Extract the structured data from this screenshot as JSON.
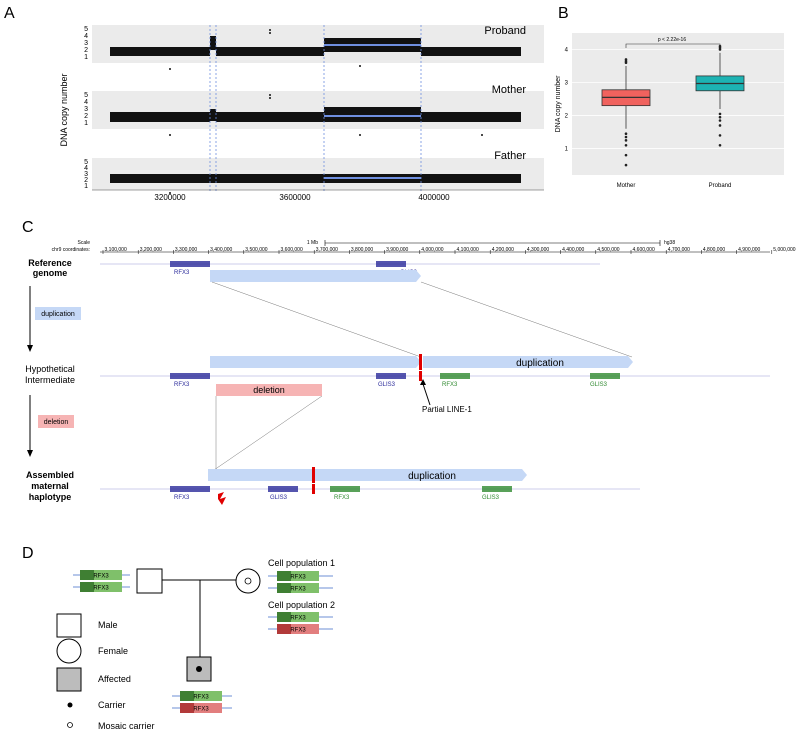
{
  "panels": {
    "a": "A",
    "b": "B",
    "c": "C",
    "d": "D"
  },
  "panel_a": {
    "ylabel": "DNA copy number",
    "tracks": [
      {
        "name": "Proband"
      },
      {
        "name": "Mother"
      },
      {
        "name": "Father"
      }
    ],
    "yticks": [
      "1",
      "2",
      "3",
      "4",
      "5"
    ],
    "xticks": [
      "3200000",
      "3600000",
      "4000000"
    ]
  },
  "chart_data": [
    {
      "type": "box",
      "ylabel": "DNA copy number",
      "categories": [
        "Mother",
        "Proband"
      ],
      "colors": [
        "#f0625e",
        "#1db3b3"
      ],
      "yticks": [
        "1",
        "2",
        "3",
        "4"
      ],
      "annotation": "p < 2.22e-16",
      "stats": [
        {
          "q1": 2.3,
          "median": 2.55,
          "q3": 2.78,
          "low": 1.6,
          "high": 3.5
        },
        {
          "q1": 2.75,
          "median": 2.97,
          "q3": 3.2,
          "low": 2.2,
          "high": 3.9
        }
      ]
    }
  ],
  "panel_c": {
    "scale_label": "Scale",
    "coord_label": "chr9 coordinates:",
    "scale_bar": "1 Mb",
    "assembly": "hg38",
    "ruler": [
      "3,100,000",
      "3,200,000",
      "3,300,000",
      "3,400,000",
      "3,500,000",
      "3,600,000",
      "3,700,000",
      "3,800,000",
      "3,900,000",
      "4,000,000",
      "4,100,000",
      "4,200,000",
      "4,300,000",
      "4,400,000",
      "4,500,000",
      "4,600,000",
      "4,700,000",
      "4,800,000",
      "4,900,000",
      "5,000,000"
    ],
    "rows": {
      "ref": [
        "Reference",
        "genome"
      ],
      "hyp": [
        "Hypothetical",
        "Intermediate"
      ],
      "asm": [
        "Assembled",
        "maternal",
        "haplotype"
      ]
    },
    "steps": {
      "dup": "duplication",
      "del": "deletion"
    },
    "labels": {
      "dup": "duplication",
      "del": "deletion",
      "line1": "Partial LINE-1"
    },
    "genes": {
      "rfx3": "RFX3",
      "glis3": "GLIS3"
    }
  },
  "panel_d": {
    "allele": "RFX3",
    "cell1": "Cell population 1",
    "cell2": "Cell population 2",
    "legend": {
      "male": "Male",
      "female": "Female",
      "affected": "Affected",
      "carrier": "Carrier",
      "mosaic": "Mosaic carrier"
    }
  }
}
